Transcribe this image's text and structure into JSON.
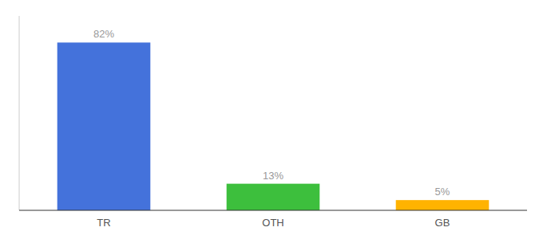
{
  "chart_data": {
    "type": "bar",
    "categories": [
      "TR",
      "OTH",
      "GB"
    ],
    "values": [
      82,
      13,
      5
    ],
    "value_labels": [
      "82%",
      "13%",
      "5%"
    ],
    "colors": [
      "#4472db",
      "#3dbf3d",
      "#ffb300"
    ],
    "ylim": [
      0,
      95
    ],
    "data_labels": true,
    "tick_labels": "x",
    "grid": false
  }
}
